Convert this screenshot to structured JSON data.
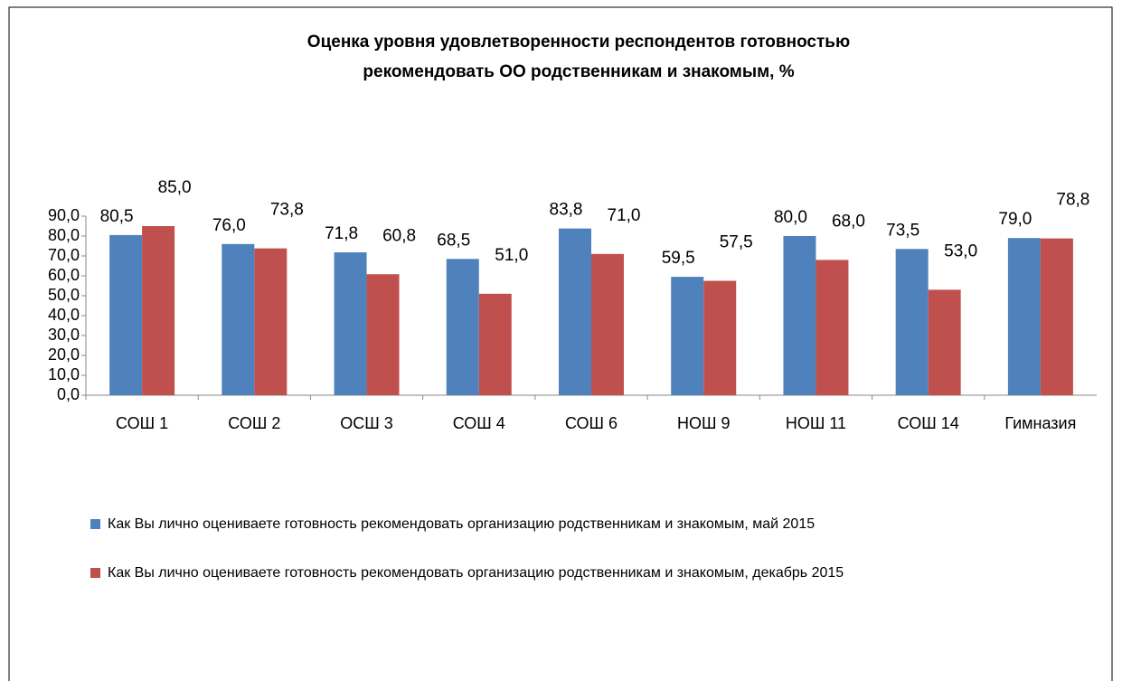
{
  "chart_data": {
    "type": "bar",
    "title_lines": [
      "Оценка  уровня удовлетворенности респондентов готовностью",
      "рекомендовать ОО родственникам и знакомым,  %"
    ],
    "categories": [
      "СОШ 1",
      "СОШ 2",
      "ОСШ 3",
      "СОШ 4",
      "СОШ 6",
      "НОШ 9",
      "НОШ 11",
      "СОШ 14",
      "Гимназия"
    ],
    "series": [
      {
        "name": "Как Вы лично оцениваете  готовность рекомендовать организацию родственникам и знакомым, май 2015",
        "color": "#4f81bd",
        "values": [
          80.5,
          76.0,
          71.8,
          68.5,
          83.8,
          59.5,
          80.0,
          73.5,
          79.0
        ],
        "value_labels": [
          "80,5",
          "76,0",
          "71,8",
          "68,5",
          "83,8",
          "59,5",
          "80,0",
          "73,5",
          "79,0"
        ]
      },
      {
        "name": "Как Вы лично оцениваете  готовность рекомендовать организацию родственникам и знакомым, декабрь 2015",
        "color": "#c0504d",
        "values": [
          85.0,
          73.8,
          60.8,
          51.0,
          71.0,
          57.5,
          68.0,
          53.0,
          78.8
        ],
        "value_labels": [
          "85,0",
          "73,8",
          "60,8",
          "51,0",
          "71,0",
          "57,5",
          "68,0",
          "53,0",
          "78,8"
        ]
      }
    ],
    "ylim": [
      0,
      90
    ],
    "yticks": [
      {
        "value": 0,
        "label": "0,0"
      },
      {
        "value": 10,
        "label": "10,0"
      },
      {
        "value": 20,
        "label": "20,0"
      },
      {
        "value": 30,
        "label": "30,0"
      },
      {
        "value": 40,
        "label": "40,0"
      },
      {
        "value": 50,
        "label": "50,0"
      },
      {
        "value": 60,
        "label": "60,0"
      },
      {
        "value": 70,
        "label": "70,0"
      },
      {
        "value": 80,
        "label": "80,0"
      },
      {
        "value": 90,
        "label": "90,0"
      }
    ],
    "legend": "bottom"
  }
}
